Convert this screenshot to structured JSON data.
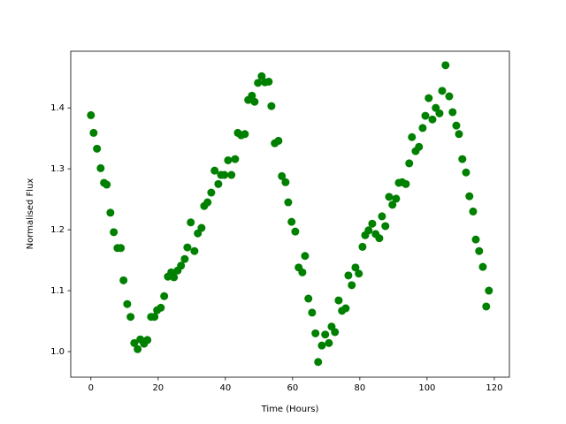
{
  "chart_data": {
    "type": "scatter",
    "xlabel": "Time (Hours)",
    "ylabel": "Normalised Flux",
    "color": "#008000",
    "xlim": [
      -6,
      124.5
    ],
    "ylim": [
      0.958,
      1.493
    ],
    "xticks": [
      0,
      20,
      40,
      60,
      80,
      100,
      120
    ],
    "yticks": [
      {
        "value": 1.0,
        "label": "1.0"
      },
      1.1,
      1.2,
      1.3,
      1.4
    ],
    "x": [
      0,
      0.8,
      1.8,
      2.9,
      3.9,
      4.7,
      5.8,
      6.8,
      7.9,
      8.9,
      9.7,
      10.8,
      11.8,
      12.9,
      13.9,
      14.7,
      15.8,
      16.8,
      17.9,
      18.9,
      19.7,
      20.8,
      21.8,
      22.9,
      23.9,
      24.7,
      25.8,
      26.8,
      27.9,
      28.7,
      29.7,
      30.8,
      31.8,
      32.9,
      33.7,
      34.7,
      35.8,
      36.8,
      37.9,
      38.7,
      39.7,
      40.8,
      41.8,
      42.9,
      43.7,
      44.7,
      45.8,
      46.8,
      47.9,
      48.7,
      49.7,
      50.8,
      51.8,
      52.9,
      53.7,
      54.7,
      55.8,
      56.8,
      57.9,
      58.7,
      59.7,
      60.8,
      61.8,
      62.9,
      63.7,
      64.7,
      65.8,
      66.8,
      67.6,
      68.7,
      69.7,
      70.8,
      71.6,
      72.6,
      73.7,
      74.7,
      75.8,
      76.6,
      77.6,
      78.7,
      79.7,
      80.8,
      81.6,
      82.6,
      83.7,
      84.7,
      85.8,
      86.6,
      87.6,
      88.7,
      89.7,
      90.8,
      91.6,
      92.6,
      93.7,
      94.7,
      95.5,
      96.6,
      97.6,
      98.7,
      99.5,
      100.5,
      101.6,
      102.6,
      103.7,
      104.5,
      105.5,
      106.6,
      107.6,
      108.7,
      109.5,
      110.5,
      111.6,
      112.6,
      113.7,
      114.5,
      115.5,
      116.6,
      117.6,
      118.4
    ],
    "values": [
      1.388,
      1.359,
      1.333,
      1.301,
      1.277,
      1.274,
      1.228,
      1.196,
      1.17,
      1.17,
      1.117,
      1.078,
      1.057,
      1.014,
      1.004,
      1.02,
      1.013,
      1.019,
      1.057,
      1.057,
      1.068,
      1.072,
      1.091,
      1.123,
      1.13,
      1.122,
      1.133,
      1.141,
      1.152,
      1.171,
      1.212,
      1.165,
      1.194,
      1.203,
      1.239,
      1.245,
      1.261,
      1.297,
      1.275,
      1.29,
      1.29,
      1.314,
      1.29,
      1.316,
      1.359,
      1.355,
      1.357,
      1.413,
      1.42,
      1.41,
      1.441,
      1.452,
      1.442,
      1.443,
      1.403,
      1.342,
      1.346,
      1.288,
      1.278,
      1.245,
      1.213,
      1.197,
      1.138,
      1.13,
      1.157,
      1.087,
      1.064,
      1.03,
      0.983,
      1.01,
      1.028,
      1.014,
      1.041,
      1.032,
      1.084,
      1.067,
      1.071,
      1.125,
      1.109,
      1.138,
      1.128,
      1.172,
      1.191,
      1.199,
      1.21,
      1.193,
      1.186,
      1.222,
      1.206,
      1.254,
      1.241,
      1.251,
      1.277,
      1.278,
      1.275,
      1.309,
      1.352,
      1.329,
      1.336,
      1.367,
      1.387,
      1.416,
      1.381,
      1.4,
      1.391,
      1.428,
      1.47,
      1.419,
      1.393,
      1.371,
      1.357,
      1.316,
      1.294,
      1.255,
      1.23,
      1.184,
      1.165,
      1.139,
      1.074,
      1.1
    ]
  }
}
